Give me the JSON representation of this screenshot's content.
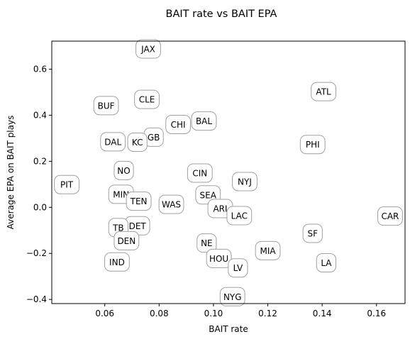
{
  "chart_data": {
    "type": "scatter",
    "title": "BAIT rate vs BAIT EPA",
    "xlabel": "BAIT rate",
    "ylabel": "Average EPA on BAIT plays",
    "xlim": [
      0.0405,
      0.1705
    ],
    "ylim": [
      -0.418,
      0.722
    ],
    "xticks": [
      0.06,
      0.08,
      0.1,
      0.12,
      0.14,
      0.16
    ],
    "xtick_labels": [
      "0.06",
      "0.08",
      "0.10",
      "0.12",
      "0.14",
      "0.16"
    ],
    "yticks": [
      -0.4,
      -0.2,
      0.0,
      0.2,
      0.4,
      0.6
    ],
    "ytick_labels": [
      "−0.4",
      "−0.2",
      "0.0",
      "0.2",
      "0.4",
      "0.6"
    ],
    "grid": false,
    "points": [
      {
        "label": "JAX",
        "x": 0.076,
        "y": 0.688
      },
      {
        "label": "ATL",
        "x": 0.1405,
        "y": 0.503
      },
      {
        "label": "CLE",
        "x": 0.0755,
        "y": 0.469
      },
      {
        "label": "BUF",
        "x": 0.0605,
        "y": 0.442
      },
      {
        "label": "BAL",
        "x": 0.0965,
        "y": 0.375
      },
      {
        "label": "CHI",
        "x": 0.087,
        "y": 0.36
      },
      {
        "label": "GB",
        "x": 0.078,
        "y": 0.305
      },
      {
        "label": "DAL",
        "x": 0.063,
        "y": 0.285
      },
      {
        "label": "KC",
        "x": 0.072,
        "y": 0.283
      },
      {
        "label": "PHI",
        "x": 0.1365,
        "y": 0.273
      },
      {
        "label": "NO",
        "x": 0.067,
        "y": 0.16
      },
      {
        "label": "CIN",
        "x": 0.095,
        "y": 0.149
      },
      {
        "label": "NYJ",
        "x": 0.1115,
        "y": 0.112
      },
      {
        "label": "PIT",
        "x": 0.046,
        "y": 0.099
      },
      {
        "label": "MIN",
        "x": 0.066,
        "y": 0.057
      },
      {
        "label": "SEA",
        "x": 0.098,
        "y": 0.054
      },
      {
        "label": "TEN",
        "x": 0.0725,
        "y": 0.027
      },
      {
        "label": "WAS",
        "x": 0.0845,
        "y": 0.013
      },
      {
        "label": "ARI",
        "x": 0.1025,
        "y": -0.005
      },
      {
        "label": "CAR",
        "x": 0.165,
        "y": -0.038
      },
      {
        "label": "LAC",
        "x": 0.1095,
        "y": -0.036
      },
      {
        "label": "SF",
        "x": 0.1365,
        "y": -0.113
      },
      {
        "label": "DET",
        "x": 0.072,
        "y": -0.08
      },
      {
        "label": "TB",
        "x": 0.065,
        "y": -0.088
      },
      {
        "label": "DEN",
        "x": 0.068,
        "y": -0.145
      },
      {
        "label": "NE",
        "x": 0.0975,
        "y": -0.155
      },
      {
        "label": "MIA",
        "x": 0.12,
        "y": -0.188
      },
      {
        "label": "HOU",
        "x": 0.102,
        "y": -0.222
      },
      {
        "label": "IND",
        "x": 0.0645,
        "y": -0.237
      },
      {
        "label": "LA",
        "x": 0.1415,
        "y": -0.241
      },
      {
        "label": "LV",
        "x": 0.109,
        "y": -0.263
      },
      {
        "label": "NYG",
        "x": 0.107,
        "y": -0.388
      }
    ]
  }
}
